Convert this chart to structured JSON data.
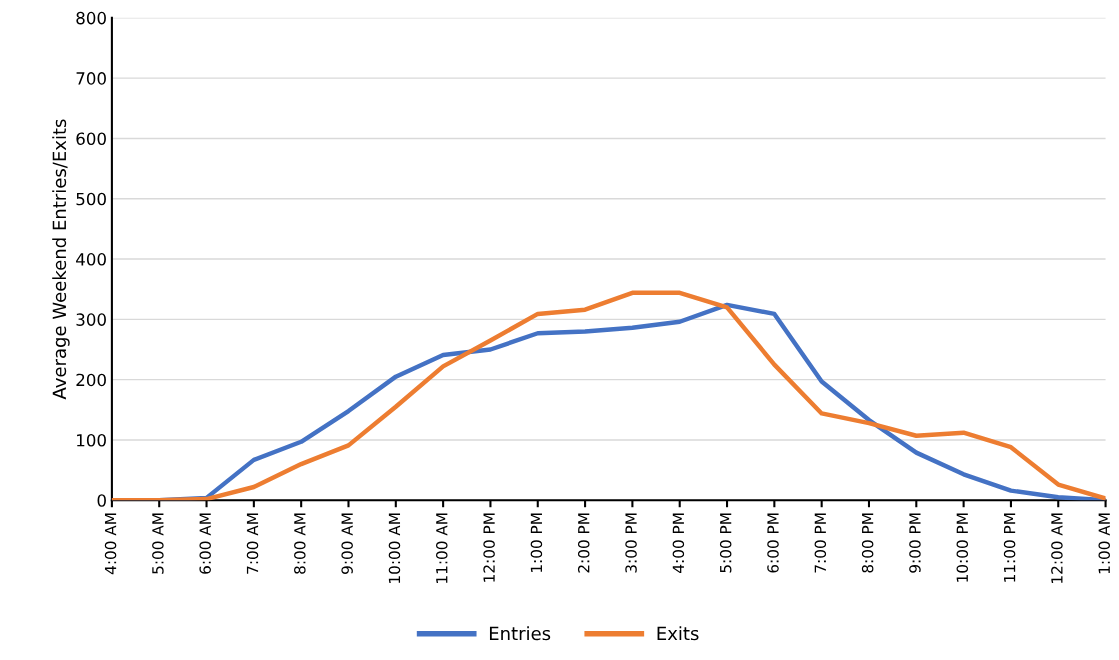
{
  "chart_data": {
    "type": "line",
    "ylabel": "Average Weekend Entries/Exits",
    "categories": [
      "4:00 AM",
      "5:00 AM",
      "6:00 AM",
      "7:00 AM",
      "8:00 AM",
      "9:00 AM",
      "10:00 AM",
      "11:00 AM",
      "12:00 PM",
      "1:00 PM",
      "2:00 PM",
      "3:00 PM",
      "4:00 PM",
      "5:00 PM",
      "6:00 PM",
      "7:00 PM",
      "8:00 PM",
      "9:00 PM",
      "10:00 PM",
      "11:00 PM",
      "12:00 AM",
      "1:00 AM"
    ],
    "series": [
      {
        "name": "Entries",
        "color": "#4472c4",
        "values": [
          0,
          0,
          4,
          67,
          97,
          148,
          205,
          241,
          250,
          277,
          280,
          286,
          296,
          324,
          309,
          197,
          133,
          79,
          43,
          16,
          5,
          0
        ]
      },
      {
        "name": "Exits",
        "color": "#ed7d31",
        "values": [
          0,
          0,
          2,
          22,
          60,
          91,
          155,
          222,
          265,
          309,
          316,
          344,
          344,
          320,
          225,
          144,
          128,
          107,
          112,
          88,
          26,
          3
        ]
      }
    ],
    "ylim": [
      0,
      800
    ],
    "yticks": [
      0,
      100,
      200,
      300,
      400,
      500,
      600,
      700,
      800
    ],
    "grid": "y",
    "legend": "bottom",
    "marker": "none",
    "line_style": "solid"
  }
}
